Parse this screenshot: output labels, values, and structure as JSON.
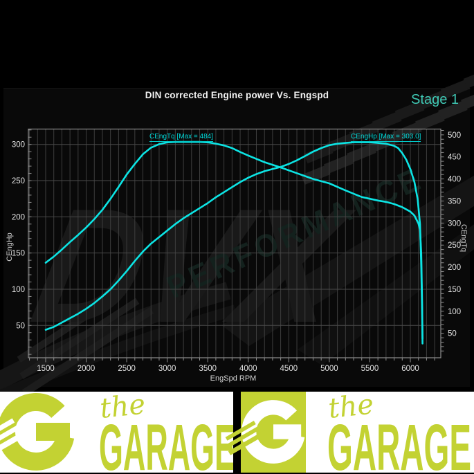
{
  "header": {
    "title": "DIN corrected Engine power Vs. Engspd",
    "stage_label": "Stage 1"
  },
  "chart_data": {
    "type": "line",
    "title": "DIN corrected Engine power Vs. Engspd",
    "xlabel": "EngSpd RPM",
    "ylabel_left": "CEngHp",
    "ylabel_right": "CEngTq",
    "xlim": [
      1280,
      6380
    ],
    "ylim_left": [
      5,
      322
    ],
    "ylim_right": [
      -6,
      514
    ],
    "grid": true,
    "x_ticks": [
      1500,
      2000,
      2500,
      3000,
      3500,
      4000,
      4500,
      5000,
      5500,
      6000
    ],
    "x_minor_step": 100,
    "left_ticks": [
      50,
      100,
      150,
      200,
      250,
      300
    ],
    "right_ticks": [
      50,
      100,
      150,
      200,
      250,
      300,
      350,
      400,
      450,
      500
    ],
    "series": [
      {
        "name": "CEngTq",
        "axis": "right",
        "max_value": 484,
        "max_label": "CEngTq [Max = 484]",
        "points": [
          [
            1500,
            210
          ],
          [
            1600,
            224
          ],
          [
            1700,
            240
          ],
          [
            1800,
            257
          ],
          [
            1900,
            273
          ],
          [
            2000,
            290
          ],
          [
            2100,
            309
          ],
          [
            2200,
            330
          ],
          [
            2300,
            355
          ],
          [
            2400,
            382
          ],
          [
            2500,
            410
          ],
          [
            2600,
            434
          ],
          [
            2700,
            456
          ],
          [
            2800,
            471
          ],
          [
            2900,
            479
          ],
          [
            3000,
            483
          ],
          [
            3100,
            484
          ],
          [
            3200,
            484
          ],
          [
            3300,
            484
          ],
          [
            3400,
            484
          ],
          [
            3500,
            483
          ],
          [
            3600,
            480
          ],
          [
            3700,
            476
          ],
          [
            3800,
            470
          ],
          [
            3900,
            461
          ],
          [
            4000,
            453
          ],
          [
            4200,
            438
          ],
          [
            4400,
            426
          ],
          [
            4600,
            413
          ],
          [
            4800,
            400
          ],
          [
            5000,
            390
          ],
          [
            5200,
            374
          ],
          [
            5400,
            359
          ],
          [
            5600,
            351
          ],
          [
            5700,
            348
          ],
          [
            5800,
            343
          ],
          [
            5900,
            336
          ],
          [
            6000,
            326
          ],
          [
            6050,
            317
          ],
          [
            6100,
            299
          ],
          [
            6120,
            285
          ],
          [
            6135,
            230
          ],
          [
            6145,
            120
          ],
          [
            6150,
            38
          ]
        ]
      },
      {
        "name": "CEngHp",
        "axis": "left",
        "max_value": 303.0,
        "max_label": "CEngHp [Max = 303.0]",
        "points": [
          [
            1500,
            44
          ],
          [
            1600,
            48
          ],
          [
            1700,
            54
          ],
          [
            1800,
            60
          ],
          [
            1900,
            66
          ],
          [
            2000,
            73
          ],
          [
            2100,
            81
          ],
          [
            2200,
            90
          ],
          [
            2300,
            100
          ],
          [
            2400,
            112
          ],
          [
            2500,
            125
          ],
          [
            2600,
            139
          ],
          [
            2700,
            152
          ],
          [
            2800,
            163
          ],
          [
            2900,
            172
          ],
          [
            3000,
            181
          ],
          [
            3100,
            190
          ],
          [
            3200,
            198
          ],
          [
            3300,
            205
          ],
          [
            3400,
            212
          ],
          [
            3500,
            219
          ],
          [
            3600,
            227
          ],
          [
            3700,
            234
          ],
          [
            3800,
            241
          ],
          [
            3900,
            248
          ],
          [
            4000,
            254
          ],
          [
            4100,
            259
          ],
          [
            4200,
            263
          ],
          [
            4300,
            266
          ],
          [
            4400,
            269
          ],
          [
            4500,
            273
          ],
          [
            4600,
            278
          ],
          [
            4700,
            284
          ],
          [
            4800,
            290
          ],
          [
            4900,
            295
          ],
          [
            5000,
            299
          ],
          [
            5100,
            301
          ],
          [
            5200,
            302
          ],
          [
            5300,
            303
          ],
          [
            5400,
            303
          ],
          [
            5500,
            303
          ],
          [
            5600,
            302
          ],
          [
            5700,
            301
          ],
          [
            5800,
            298
          ],
          [
            5850,
            295
          ],
          [
            5900,
            288
          ],
          [
            5950,
            279
          ],
          [
            6000,
            266
          ],
          [
            6050,
            248
          ],
          [
            6090,
            225
          ],
          [
            6120,
            190
          ],
          [
            6135,
            130
          ],
          [
            6145,
            70
          ],
          [
            6150,
            25
          ]
        ]
      }
    ],
    "legend_position": "none"
  },
  "watermark": {
    "brand": "DVX",
    "subbrand": "PERFORMANCE"
  },
  "banner": {
    "script_label": "the",
    "main_label": "GARAGE"
  },
  "colors": {
    "curve_cyan": "#0ce4e4",
    "annotation_cyan": "#00dbdb",
    "stage_teal": "#3fc8b4",
    "grid_gray": "#3e3e3e",
    "grid_major_gray": "#4a4a4a",
    "spine_gray": "#909090",
    "tick_text": "#e2e2e2",
    "banner_lime": "#c3d233",
    "banner_white": "#ffffff"
  }
}
